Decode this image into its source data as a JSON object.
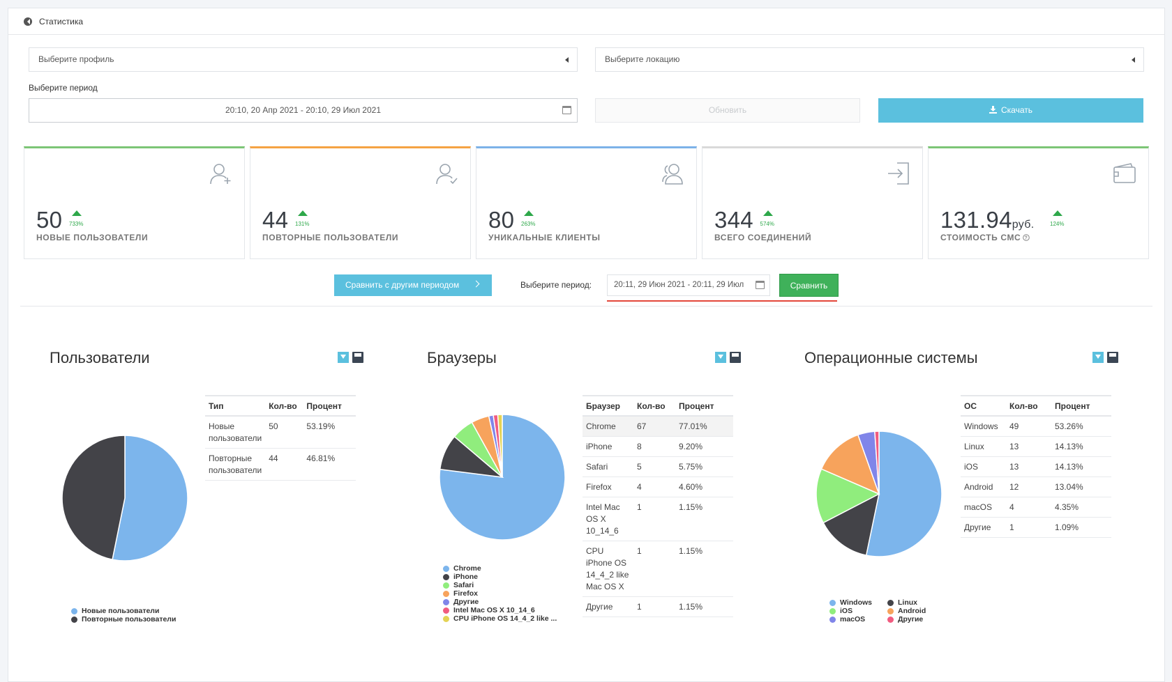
{
  "header": {
    "title": "Статистика"
  },
  "filters": {
    "profile_placeholder": "Выберите профиль",
    "location_placeholder": "Выберите локацию",
    "period_label": "Выберите период",
    "period_value": "20:10, 20 Апр 2021 - 20:10, 29 Июл 2021",
    "refresh_label": "Обновить",
    "download_label": "Скачать"
  },
  "cards": [
    {
      "value": "50",
      "unit": "",
      "trend": "733%",
      "label": "НОВЫЕ ПОЛЬЗОВАТЕЛИ",
      "color": "#7cc576",
      "icon": "user-add-icon"
    },
    {
      "value": "44",
      "unit": "",
      "trend": "131%",
      "label": "ПОВТОРНЫЕ ПОЛЬЗОВАТЕЛИ",
      "color": "#f5a343",
      "icon": "user-check-icon"
    },
    {
      "value": "80",
      "unit": "",
      "trend": "263%",
      "label": "УНИКАЛЬНЫЕ КЛИЕНТЫ",
      "color": "#7cb2e8",
      "icon": "users-icon"
    },
    {
      "value": "344",
      "unit": "",
      "trend": "574%",
      "label": "ВСЕГО СОЕДИНЕНИЙ",
      "color": "#d9d9d9",
      "icon": "login-icon"
    },
    {
      "value": "131.94",
      "unit": "руб.",
      "trend": "124%",
      "label": "СТОИМОСТЬ СМС",
      "color": "#7cc576",
      "icon": "wallet-icon"
    }
  ],
  "compare": {
    "button_label": "Сравнить с другим периодом",
    "period_label": "Выберите период:",
    "period_value": "20:11, 29 Июн 2021 - 20:11, 29 Июл",
    "submit_label": "Сравнить"
  },
  "colors": {
    "blue": "#7cb5ec",
    "dark": "#434348",
    "green": "#90ed7d",
    "orange": "#f7a35c",
    "purple": "#8085e9",
    "pink": "#f15c80",
    "yellow": "#e4d354"
  },
  "sections": {
    "users": {
      "title": "Пользователи",
      "columns": [
        "Тип",
        "Кол-во",
        "Процент"
      ],
      "rows": [
        {
          "name": "Новые пользователи",
          "count": "50",
          "pct": "53.19%"
        },
        {
          "name": "Повторные пользователи",
          "count": "44",
          "pct": "46.81%"
        }
      ],
      "legend": [
        "Новые пользователи",
        "Повторные пользователи"
      ]
    },
    "browsers": {
      "title": "Браузеры",
      "columns": [
        "Браузер",
        "Кол-во",
        "Процент"
      ],
      "rows": [
        {
          "name": "Chrome",
          "count": "67",
          "pct": "77.01%"
        },
        {
          "name": "iPhone",
          "count": "8",
          "pct": "9.20%"
        },
        {
          "name": "Safari",
          "count": "5",
          "pct": "5.75%"
        },
        {
          "name": "Firefox",
          "count": "4",
          "pct": "4.60%"
        },
        {
          "name": "Intel Mac OS X 10_14_6",
          "count": "1",
          "pct": "1.15%"
        },
        {
          "name": "CPU iPhone OS 14_4_2 like Mac OS X",
          "count": "1",
          "pct": "1.15%"
        },
        {
          "name": "Другие",
          "count": "1",
          "pct": "1.15%"
        }
      ],
      "legend": [
        "Chrome",
        "iPhone",
        "Safari",
        "Firefox",
        "Другие",
        "Intel Mac OS X 10_14_6",
        "CPU iPhone OS 14_4_2 like ..."
      ]
    },
    "os": {
      "title": "Операционные системы",
      "columns": [
        "ОС",
        "Кол-во",
        "Процент"
      ],
      "rows": [
        {
          "name": "Windows",
          "count": "49",
          "pct": "53.26%"
        },
        {
          "name": "Linux",
          "count": "13",
          "pct": "14.13%"
        },
        {
          "name": "iOS",
          "count": "13",
          "pct": "14.13%"
        },
        {
          "name": "Android",
          "count": "12",
          "pct": "13.04%"
        },
        {
          "name": "macOS",
          "count": "4",
          "pct": "4.35%"
        },
        {
          "name": "Другие",
          "count": "1",
          "pct": "1.09%"
        }
      ],
      "legend": [
        "Windows",
        "Linux",
        "iOS",
        "Android",
        "macOS",
        "Другие"
      ]
    }
  },
  "chart_data": [
    {
      "type": "pie",
      "categories": [
        "Новые пользователи",
        "Повторные пользователи"
      ],
      "values": [
        50,
        44
      ],
      "colors": [
        "#7cb5ec",
        "#434348"
      ]
    },
    {
      "type": "pie",
      "categories": [
        "Chrome",
        "iPhone",
        "Safari",
        "Firefox",
        "Другие",
        "Intel Mac OS X 10_14_6",
        "CPU iPhone OS 14_4_2 like Mac OS X"
      ],
      "values": [
        67,
        8,
        5,
        4,
        1,
        1,
        1
      ],
      "colors": [
        "#7cb5ec",
        "#434348",
        "#90ed7d",
        "#f7a35c",
        "#8085e9",
        "#f15c80",
        "#e4d354"
      ]
    },
    {
      "type": "pie",
      "categories": [
        "Windows",
        "Linux",
        "iOS",
        "Android",
        "macOS",
        "Другие"
      ],
      "values": [
        49,
        13,
        13,
        12,
        4,
        1
      ],
      "colors": [
        "#7cb5ec",
        "#434348",
        "#90ed7d",
        "#f7a35c",
        "#8085e9",
        "#f15c80"
      ]
    }
  ]
}
